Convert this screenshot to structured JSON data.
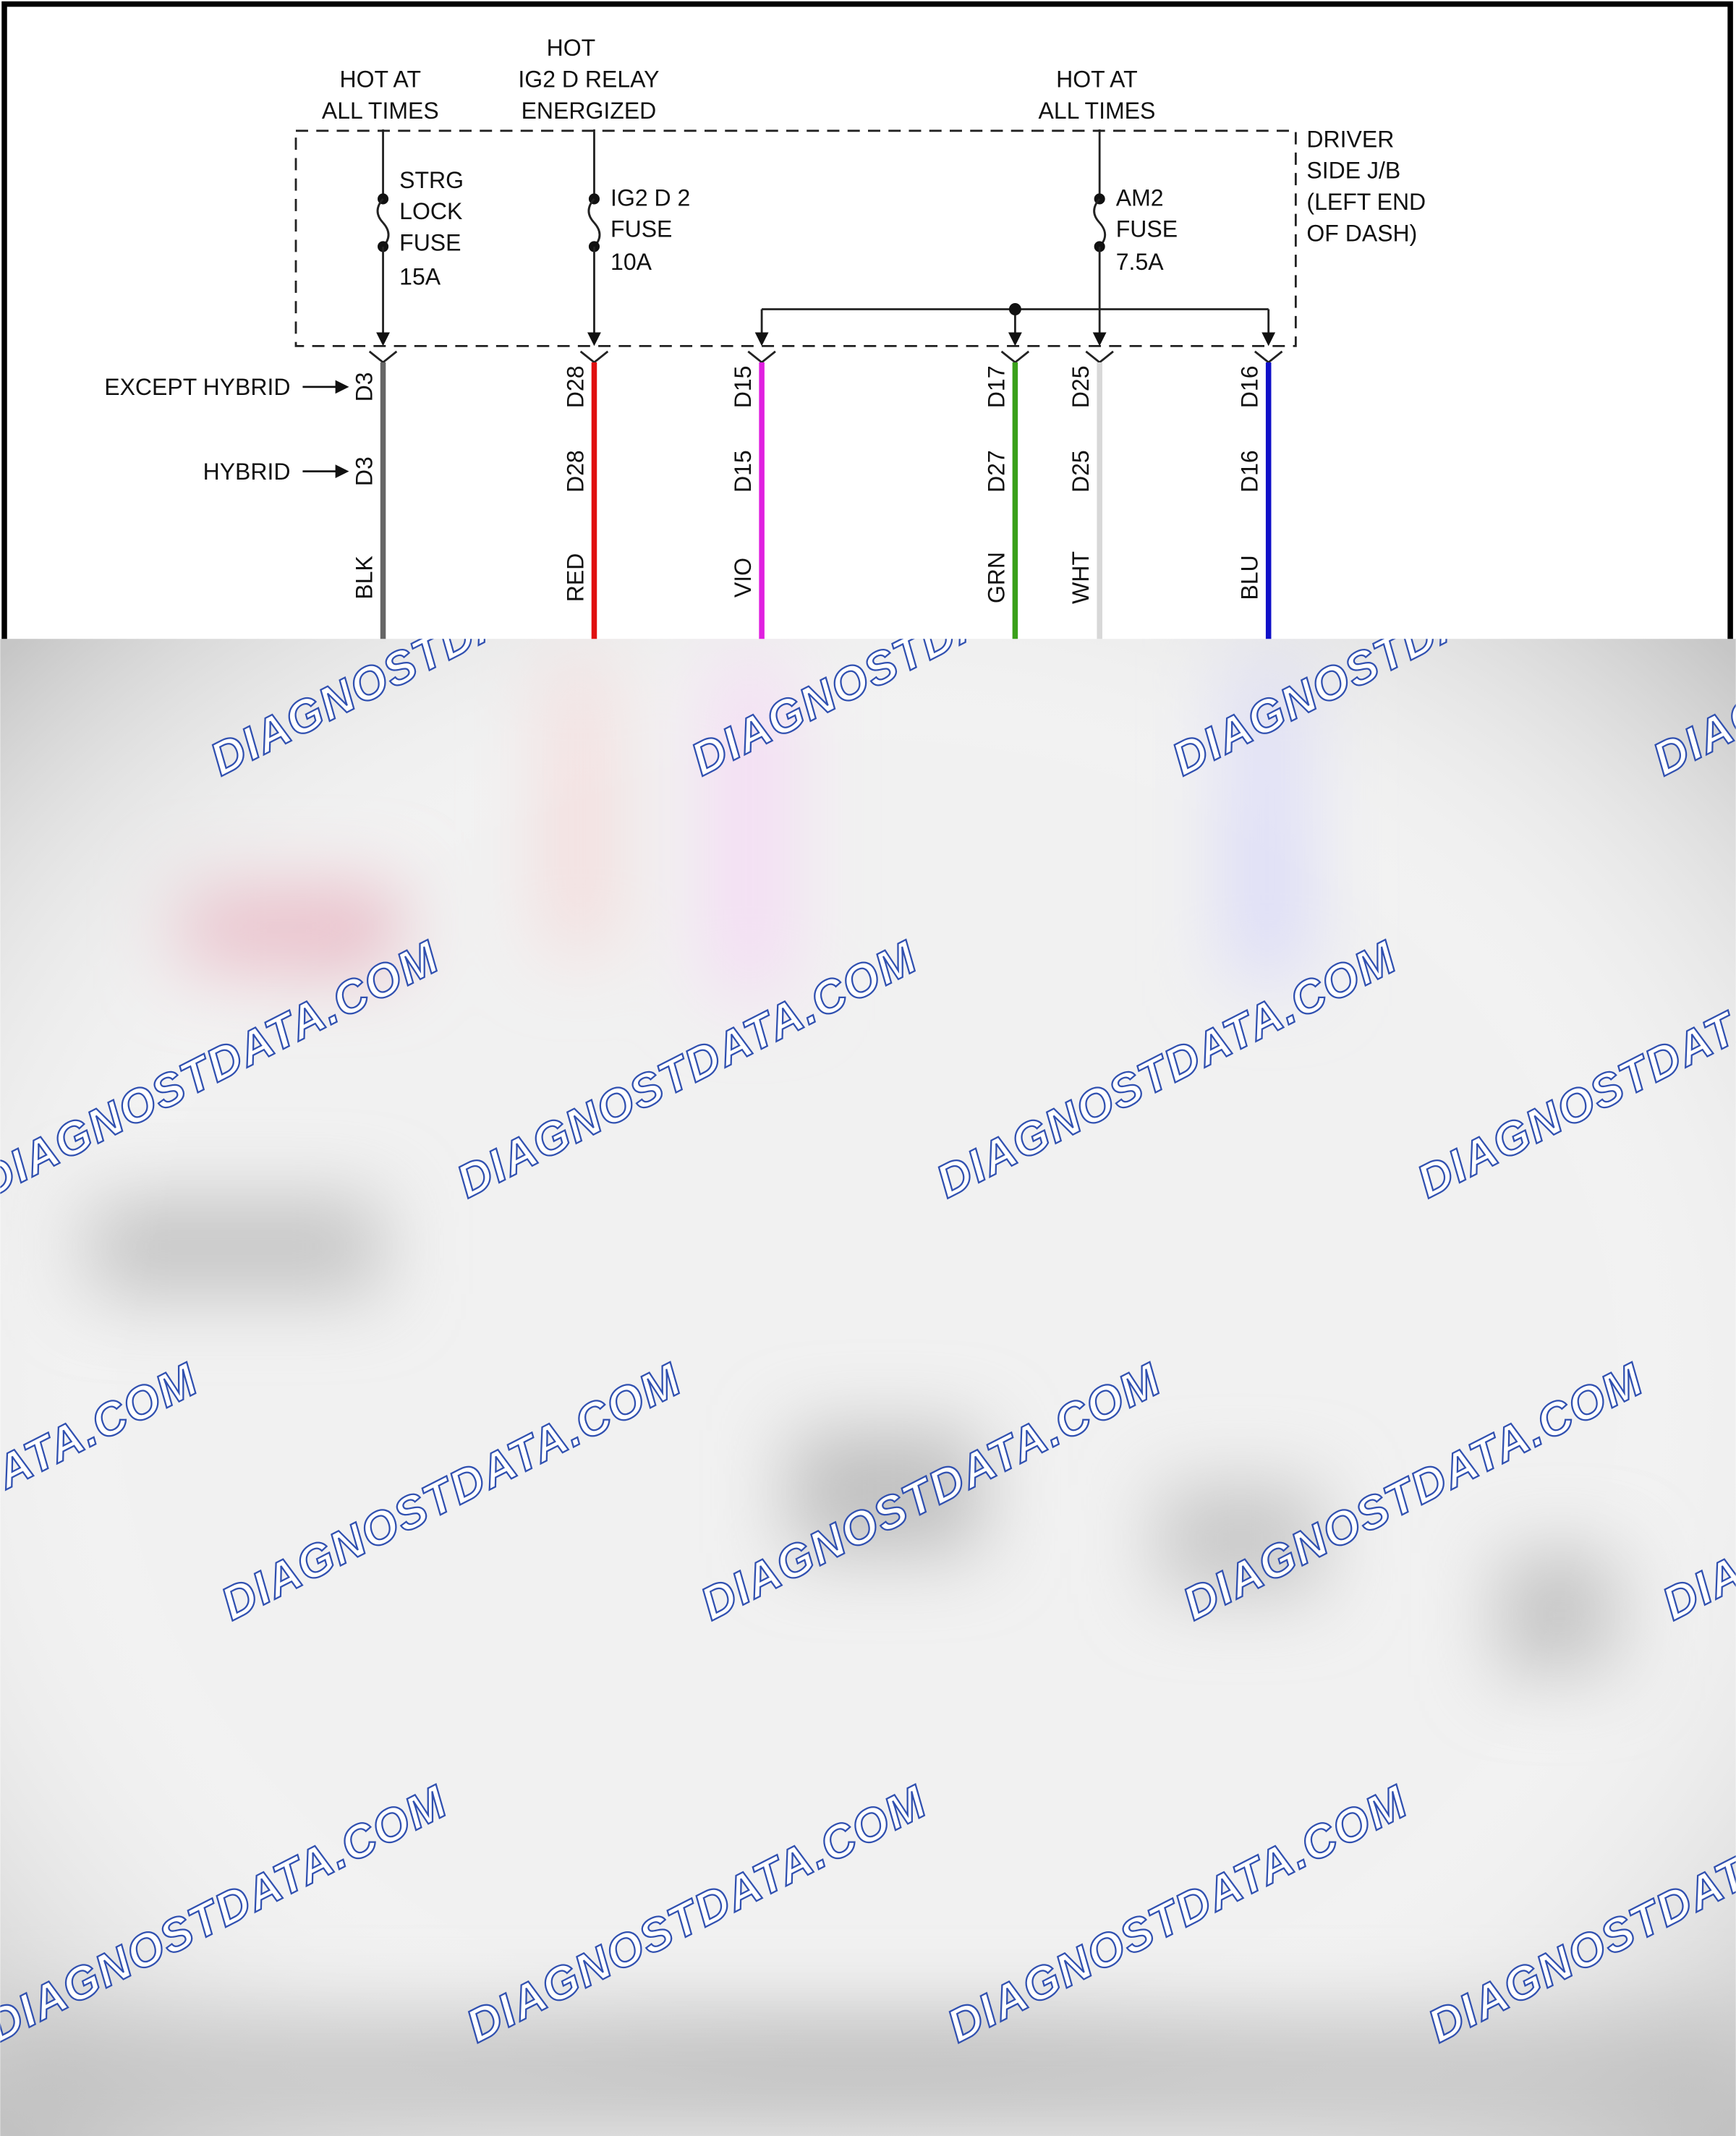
{
  "sources": [
    [
      "HOT AT",
      "ALL TIMES"
    ],
    [
      "HOT",
      "IG2 D RELAY",
      "ENERGIZED"
    ],
    [
      "HOT AT",
      "ALL TIMES"
    ]
  ],
  "fuses": [
    [
      "STRG",
      "LOCK",
      "FUSE",
      "15A"
    ],
    [
      "IG2 D 2",
      "FUSE",
      "10A"
    ],
    [
      "AM2",
      "FUSE",
      "7.5A"
    ]
  ],
  "junction_block": [
    "DRIVER",
    "SIDE J/B",
    "(LEFT END",
    "OF DASH)"
  ],
  "variants": [
    "EXCEPT HYBRID",
    "HYBRID"
  ],
  "wires": [
    {
      "pin_except_hybrid": "D3",
      "pin_hybrid": "D3",
      "color_code": "BLK",
      "color": "#666666"
    },
    {
      "pin_except_hybrid": "D28",
      "pin_hybrid": "D28",
      "color_code": "RED",
      "color": "#e01010"
    },
    {
      "pin_except_hybrid": "D15",
      "pin_hybrid": "D15",
      "color_code": "VIO",
      "color": "#e020e0"
    },
    {
      "pin_except_hybrid": "D17",
      "pin_hybrid": "D27",
      "color_code": "GRN",
      "color": "#3aa01a"
    },
    {
      "pin_except_hybrid": "D25",
      "pin_hybrid": "D25",
      "color_code": "WHT",
      "color": "#d8d8d8"
    },
    {
      "pin_except_hybrid": "D16",
      "pin_hybrid": "D16",
      "color_code": "BLU",
      "color": "#1010c8"
    }
  ],
  "watermark": "DIAGNOSTDATA.COM"
}
